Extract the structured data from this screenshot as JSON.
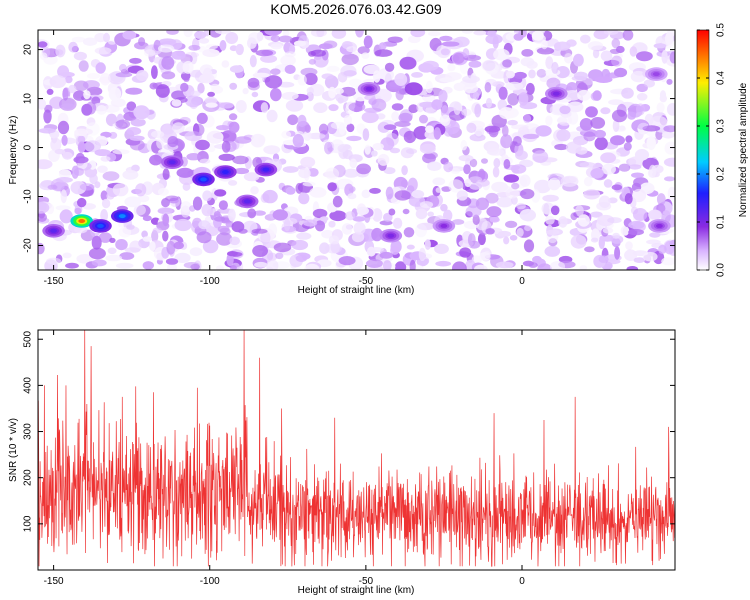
{
  "title": "KOM5.2026.076.03.42.G09",
  "colors": {
    "snr_line": "#ee3333",
    "spectrogram_low": "#ffffff",
    "spectrogram_mid": "#8a2be2",
    "spectrogram_high": "#ff0000"
  },
  "chart_data": [
    {
      "type": "heatmap",
      "name": "spectrogram",
      "xlabel": "Height of straight line (km)",
      "ylabel": "Frequency (Hz)",
      "xlim": [
        -155,
        49
      ],
      "ylim": [
        -25,
        24
      ],
      "x_ticks": [
        -150,
        -100,
        -50,
        0
      ],
      "y_ticks": [
        -20,
        -10,
        0,
        10,
        20
      ],
      "grid": false,
      "colorbar": {
        "label": "Normalized spectral amplitude",
        "range": [
          0,
          0.5
        ],
        "ticks": [
          0.0,
          0.1,
          0.2,
          0.3,
          0.4,
          0.5
        ],
        "colormap": "rainbow (white at 0, purple, blue, cyan, green, yellow, red at 0.5)"
      },
      "hotspots": [
        {
          "x": -141,
          "y": -15,
          "value": 0.45
        },
        {
          "x": -128,
          "y": -14,
          "value": 0.2
        },
        {
          "x": -135,
          "y": -16,
          "value": 0.18
        },
        {
          "x": -102,
          "y": -6.5,
          "value": 0.18
        },
        {
          "x": -95,
          "y": -5,
          "value": 0.15
        },
        {
          "x": -82,
          "y": -4.5,
          "value": 0.14
        },
        {
          "x": -112,
          "y": -3,
          "value": 0.12
        },
        {
          "x": -150,
          "y": -17,
          "value": 0.12
        },
        {
          "x": -88,
          "y": -11,
          "value": 0.12
        },
        {
          "x": -42,
          "y": -18,
          "value": 0.1
        },
        {
          "x": -49,
          "y": 12,
          "value": 0.1
        },
        {
          "x": 11,
          "y": 11,
          "value": 0.1
        },
        {
          "x": -25,
          "y": -16,
          "value": 0.09
        },
        {
          "x": 44,
          "y": -16,
          "value": 0.09
        },
        {
          "x": 43,
          "y": 15,
          "value": 0.08
        }
      ]
    },
    {
      "type": "line",
      "name": "snr",
      "xlabel": "Height of straight line (km)",
      "ylabel": "SNR (10 * v/v)",
      "xlim": [
        -155,
        49
      ],
      "ylim": [
        0,
        520
      ],
      "x_ticks": [
        -150,
        -100,
        -50,
        0
      ],
      "y_ticks": [
        100,
        200,
        300,
        400,
        500
      ],
      "grid": false,
      "profile": {
        "x": [
          -155,
          -145,
          -140,
          -135,
          -130,
          -120,
          -110,
          -100,
          -95,
          -90,
          -85,
          -80,
          -70,
          -60,
          -50,
          -40,
          -30,
          -20,
          -10,
          0,
          10,
          20,
          30,
          40,
          49
        ],
        "mean": [
          155,
          165,
          185,
          175,
          165,
          160,
          165,
          170,
          175,
          180,
          165,
          135,
          125,
          115,
          115,
          115,
          115,
          115,
          110,
          110,
          110,
          110,
          110,
          110,
          115
        ]
      },
      "peaks": [
        {
          "x": -140,
          "y": 520
        },
        {
          "x": -138,
          "y": 485
        },
        {
          "x": -89,
          "y": 520
        },
        {
          "x": -84,
          "y": 460
        },
        {
          "x": -153,
          "y": 400
        },
        {
          "x": -146,
          "y": 400
        },
        {
          "x": -128,
          "y": 375
        },
        {
          "x": -118,
          "y": 385
        },
        {
          "x": -104,
          "y": 395
        },
        {
          "x": -77,
          "y": 350
        },
        {
          "x": -60,
          "y": 330
        },
        {
          "x": -9,
          "y": 340
        },
        {
          "x": 17,
          "y": 375
        },
        {
          "x": 7,
          "y": 325
        },
        {
          "x": 47,
          "y": 310
        }
      ],
      "samples": 1800
    }
  ]
}
